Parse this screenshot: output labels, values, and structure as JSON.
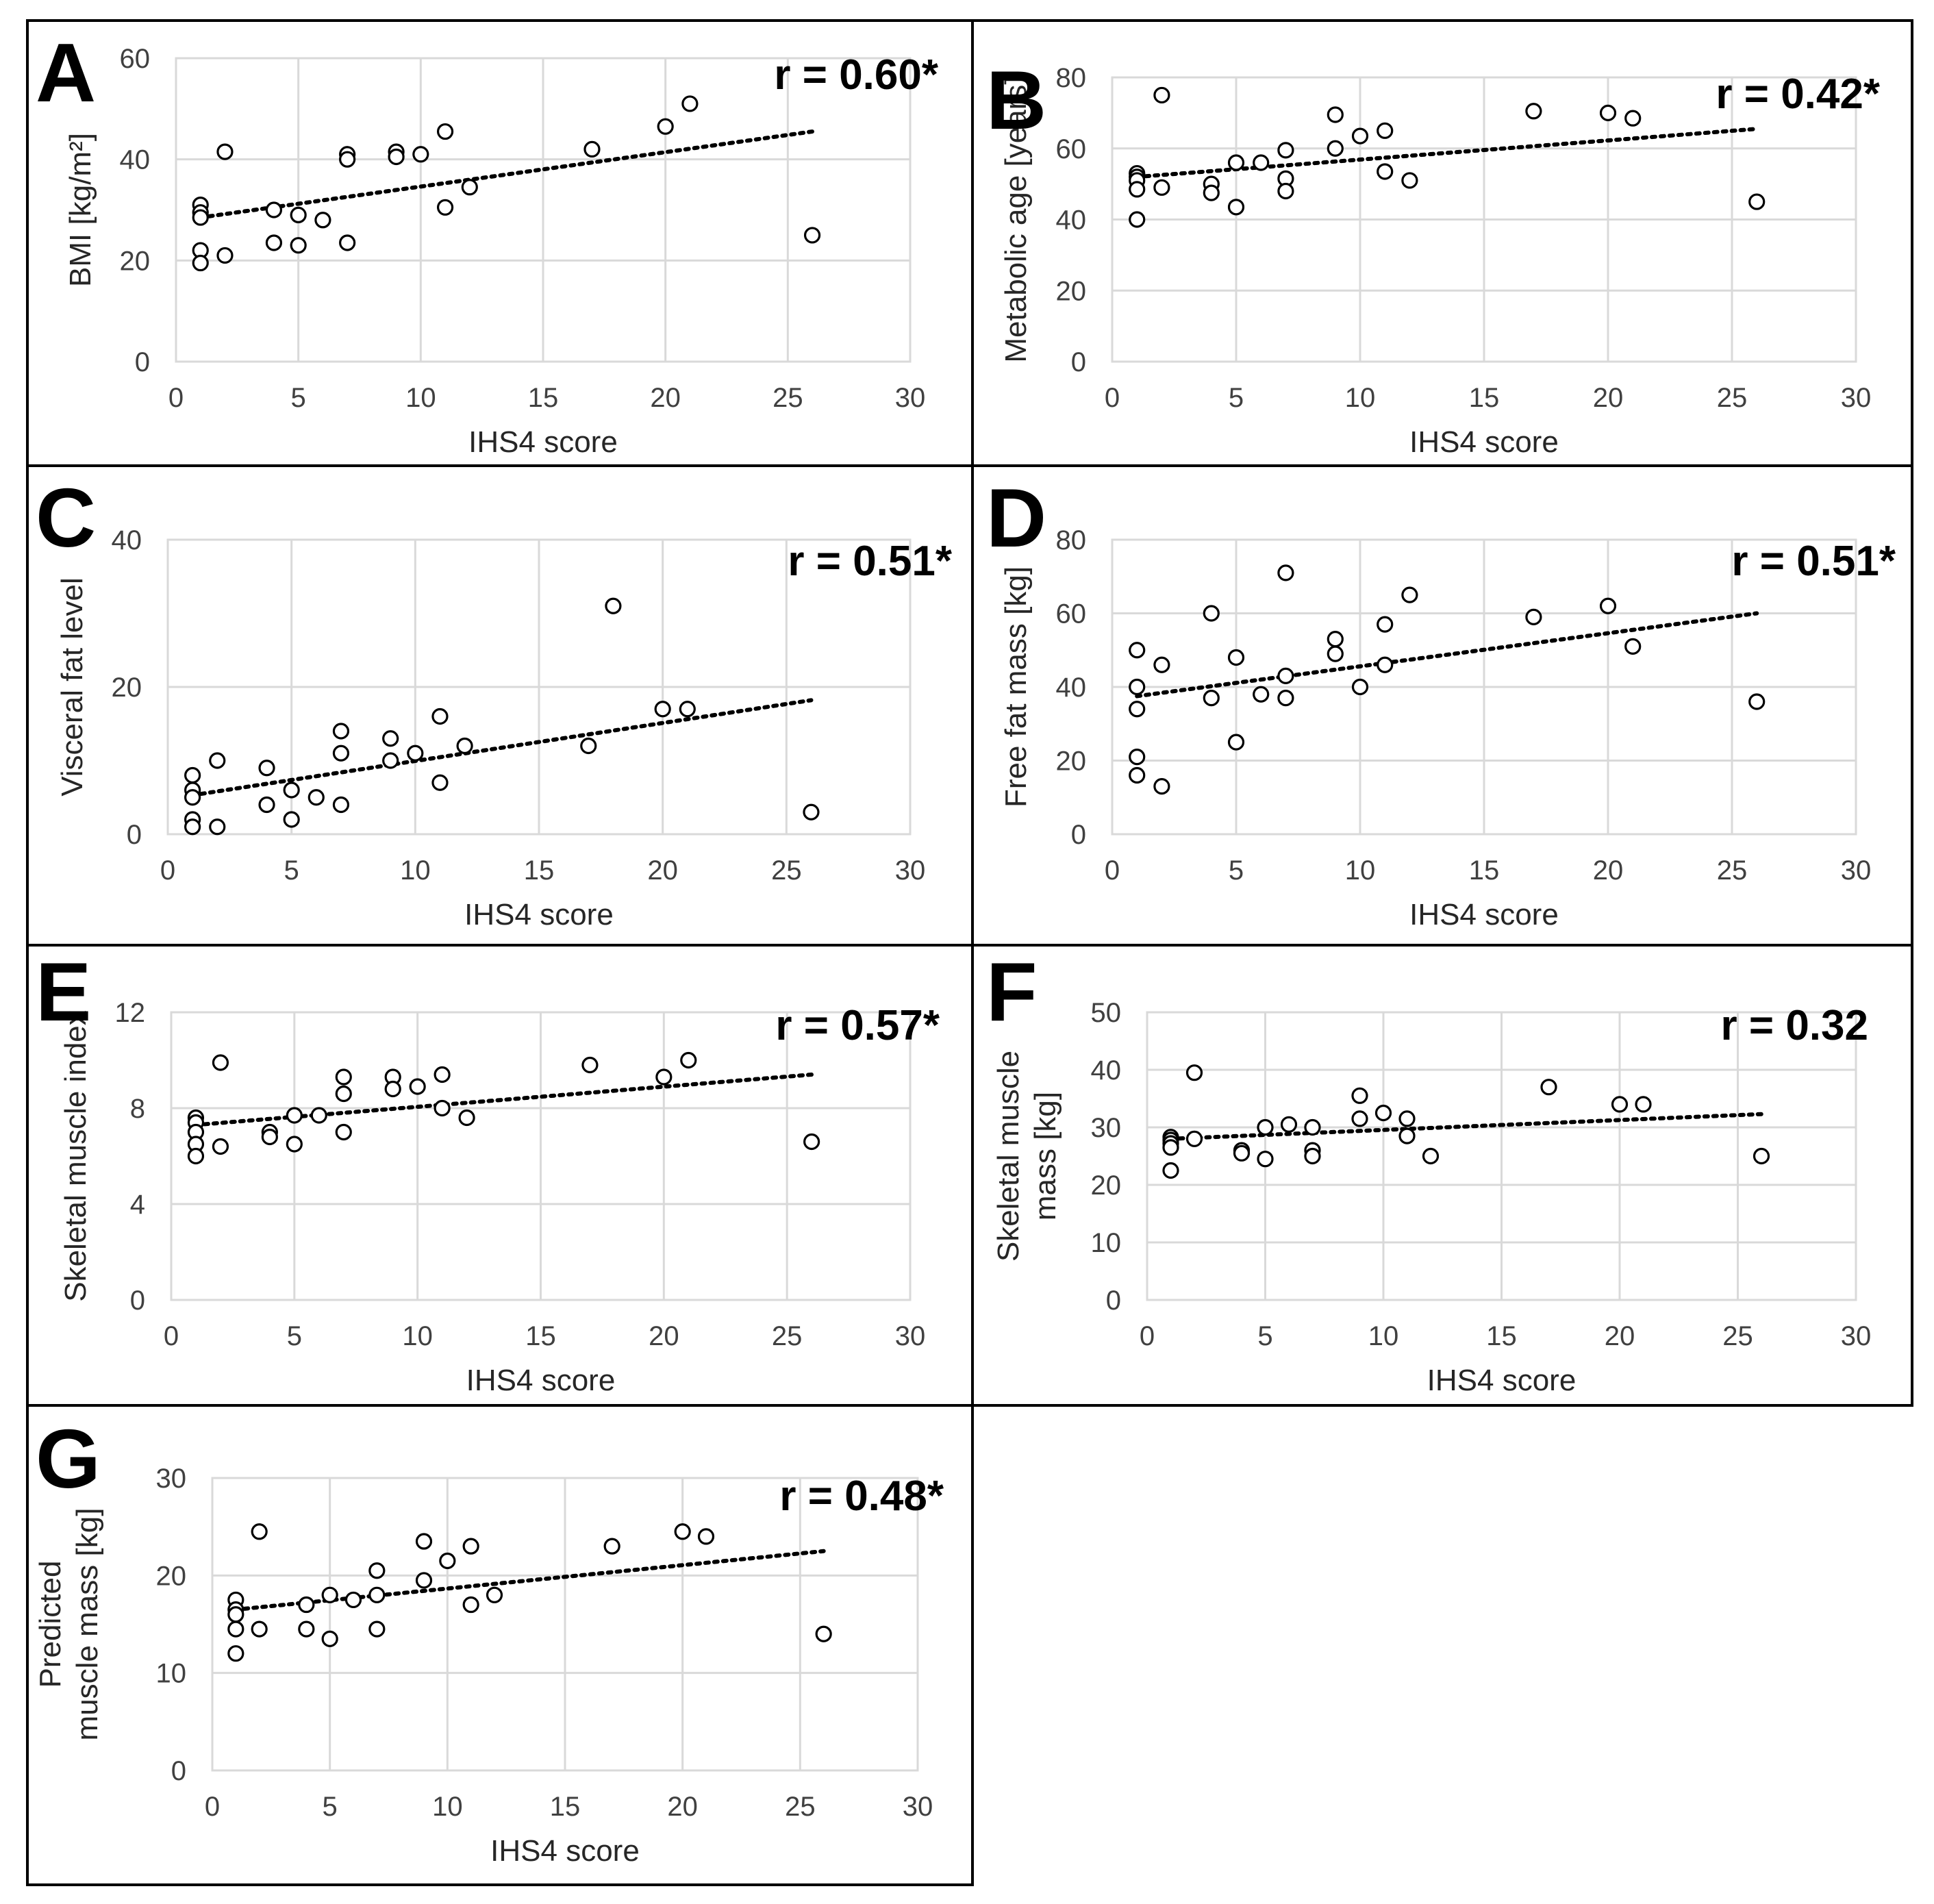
{
  "figure": {
    "panel_letters": [
      "A",
      "B",
      "C",
      "D",
      "E",
      "F",
      "G"
    ]
  },
  "chart_data": [
    {
      "id": "A",
      "type": "scatter",
      "panel_label": "A",
      "annotation": "r = 0.60*",
      "xlabel": "IHS4 score",
      "ylabel": "BMI [kg/m²]",
      "xlim": [
        0,
        30
      ],
      "ylim": [
        0,
        60
      ],
      "xticks": [
        "0",
        "5",
        "10",
        "15",
        "20",
        "25",
        "30"
      ],
      "yticks": [
        "0",
        "20",
        "40",
        "60"
      ],
      "points": [
        [
          1,
          31
        ],
        [
          1,
          29.5
        ],
        [
          1,
          28.5
        ],
        [
          1,
          22
        ],
        [
          1,
          19.5
        ],
        [
          2,
          41.5
        ],
        [
          2,
          21
        ],
        [
          4,
          30
        ],
        [
          4,
          23.5
        ],
        [
          5,
          29
        ],
        [
          5,
          23
        ],
        [
          6,
          28
        ],
        [
          7,
          41
        ],
        [
          7,
          40
        ],
        [
          7,
          23.5
        ],
        [
          9,
          41.5
        ],
        [
          9,
          40.5
        ],
        [
          10,
          41
        ],
        [
          11,
          45.5
        ],
        [
          11,
          30.5
        ],
        [
          12,
          34.5
        ],
        [
          17,
          42
        ],
        [
          20,
          46.5
        ],
        [
          21,
          51
        ],
        [
          26,
          25
        ]
      ],
      "trendline": {
        "x": [
          1,
          26
        ],
        "y": [
          28.5,
          45.5
        ]
      }
    },
    {
      "id": "B",
      "type": "scatter",
      "panel_label": "B",
      "annotation": "r = 0.42*",
      "xlabel": "IHS4 score",
      "ylabel": "Metabolic age [years]",
      "xlim": [
        0,
        30
      ],
      "ylim": [
        0,
        80
      ],
      "xticks": [
        "0",
        "5",
        "10",
        "15",
        "20",
        "25",
        "30"
      ],
      "yticks": [
        "0",
        "20",
        "40",
        "60",
        "80"
      ],
      "points": [
        [
          1,
          53
        ],
        [
          1,
          52
        ],
        [
          1,
          51
        ],
        [
          1,
          48.5
        ],
        [
          1,
          40
        ],
        [
          2,
          75
        ],
        [
          2,
          49
        ],
        [
          4,
          50
        ],
        [
          4,
          47.5
        ],
        [
          5,
          56
        ],
        [
          5,
          43.5
        ],
        [
          6,
          56
        ],
        [
          7,
          59.5
        ],
        [
          7,
          51.5
        ],
        [
          7,
          48
        ],
        [
          9,
          69.5
        ],
        [
          9,
          60
        ],
        [
          10,
          63.5
        ],
        [
          11,
          65
        ],
        [
          11,
          53.5
        ],
        [
          12,
          51
        ],
        [
          17,
          70.5
        ],
        [
          20,
          70
        ],
        [
          21,
          68.5
        ],
        [
          26,
          45
        ]
      ],
      "trendline": {
        "x": [
          1,
          26
        ],
        "y": [
          52,
          65.5
        ]
      }
    },
    {
      "id": "C",
      "type": "scatter",
      "panel_label": "C",
      "annotation": "r = 0.51*",
      "xlabel": "IHS4 score",
      "ylabel": "Visceral fat level",
      "xlim": [
        0,
        30
      ],
      "ylim": [
        0,
        40
      ],
      "xticks": [
        "0",
        "5",
        "10",
        "15",
        "20",
        "25",
        "30"
      ],
      "yticks": [
        "0",
        "20",
        "40"
      ],
      "points": [
        [
          1,
          8
        ],
        [
          1,
          6
        ],
        [
          1,
          5
        ],
        [
          1,
          2
        ],
        [
          1,
          1
        ],
        [
          2,
          10
        ],
        [
          2,
          1
        ],
        [
          4,
          9
        ],
        [
          4,
          4
        ],
        [
          5,
          6
        ],
        [
          5,
          2
        ],
        [
          6,
          5
        ],
        [
          7,
          14
        ],
        [
          7,
          11
        ],
        [
          7,
          4
        ],
        [
          9,
          13
        ],
        [
          9,
          10
        ],
        [
          10,
          11
        ],
        [
          11,
          16
        ],
        [
          11,
          7
        ],
        [
          12,
          12
        ],
        [
          17,
          12
        ],
        [
          18,
          31
        ],
        [
          20,
          17
        ],
        [
          21,
          17
        ],
        [
          26,
          3
        ]
      ],
      "trendline": {
        "x": [
          1,
          26
        ],
        "y": [
          5.3,
          18.2
        ]
      }
    },
    {
      "id": "D",
      "type": "scatter",
      "panel_label": "D",
      "annotation": "r = 0.51*",
      "xlabel": "IHS4 score",
      "ylabel": "Free fat mass [kg]",
      "xlim": [
        0,
        30
      ],
      "ylim": [
        0,
        80
      ],
      "xticks": [
        "0",
        "5",
        "10",
        "15",
        "20",
        "25",
        "30"
      ],
      "yticks": [
        "0",
        "20",
        "40",
        "60",
        "80"
      ],
      "points": [
        [
          1,
          50
        ],
        [
          1,
          40
        ],
        [
          1,
          34
        ],
        [
          1,
          21
        ],
        [
          1,
          16
        ],
        [
          2,
          46
        ],
        [
          2,
          13
        ],
        [
          4,
          60
        ],
        [
          4,
          37
        ],
        [
          5,
          48
        ],
        [
          5,
          25
        ],
        [
          6,
          38
        ],
        [
          7,
          71
        ],
        [
          7,
          43
        ],
        [
          7,
          37
        ],
        [
          9,
          53
        ],
        [
          9,
          49
        ],
        [
          10,
          40
        ],
        [
          11,
          57
        ],
        [
          11,
          46
        ],
        [
          12,
          65
        ],
        [
          17,
          59
        ],
        [
          20,
          62
        ],
        [
          21,
          51
        ],
        [
          26,
          36
        ]
      ],
      "trendline": {
        "x": [
          1,
          26
        ],
        "y": [
          37.5,
          60
        ]
      }
    },
    {
      "id": "E",
      "type": "scatter",
      "panel_label": "E",
      "annotation": "r = 0.57*",
      "xlabel": "IHS4 score",
      "ylabel": "Skeletal muscle index",
      "xlim": [
        0,
        30
      ],
      "ylim": [
        0,
        12
      ],
      "xticks": [
        "0",
        "5",
        "10",
        "15",
        "20",
        "25",
        "30"
      ],
      "yticks": [
        "0",
        "4",
        "8",
        "12"
      ],
      "points": [
        [
          1,
          7.6
        ],
        [
          1,
          7.4
        ],
        [
          1,
          7.0
        ],
        [
          1,
          6.5
        ],
        [
          1,
          6.0
        ],
        [
          2,
          9.9
        ],
        [
          2,
          6.4
        ],
        [
          4,
          7.0
        ],
        [
          4,
          6.8
        ],
        [
          5,
          7.7
        ],
        [
          5,
          6.5
        ],
        [
          6,
          7.7
        ],
        [
          7,
          9.3
        ],
        [
          7,
          8.6
        ],
        [
          7,
          7.0
        ],
        [
          9,
          9.3
        ],
        [
          9,
          8.8
        ],
        [
          10,
          8.9
        ],
        [
          11,
          9.4
        ],
        [
          11,
          8.0
        ],
        [
          12,
          7.6
        ],
        [
          17,
          9.8
        ],
        [
          20,
          9.3
        ],
        [
          21,
          10.0
        ],
        [
          26,
          6.6
        ]
      ],
      "trendline": {
        "x": [
          1,
          26
        ],
        "y": [
          7.3,
          9.4
        ]
      }
    },
    {
      "id": "F",
      "type": "scatter",
      "panel_label": "F",
      "annotation": "r = 0.32",
      "xlabel": "IHS4 score",
      "ylabel": "Skeletal muscle mass [kg]",
      "xlim": [
        0,
        30
      ],
      "ylim": [
        0,
        50
      ],
      "xticks": [
        "0",
        "5",
        "10",
        "15",
        "20",
        "25",
        "30"
      ],
      "yticks": [
        "0",
        "10",
        "20",
        "30",
        "40",
        "50"
      ],
      "points": [
        [
          1,
          28.3
        ],
        [
          1,
          27.8
        ],
        [
          1,
          27.2
        ],
        [
          1,
          26.5
        ],
        [
          1,
          22.5
        ],
        [
          2,
          39.5
        ],
        [
          2,
          28
        ],
        [
          4,
          26
        ],
        [
          4,
          25.5
        ],
        [
          5,
          30
        ],
        [
          5,
          24.5
        ],
        [
          6,
          30.5
        ],
        [
          7,
          30
        ],
        [
          7,
          26
        ],
        [
          7,
          25
        ],
        [
          9,
          35.5
        ],
        [
          9,
          31.5
        ],
        [
          10,
          32.5
        ],
        [
          11,
          31.5
        ],
        [
          11,
          28.5
        ],
        [
          12,
          25
        ],
        [
          17,
          37
        ],
        [
          20,
          34
        ],
        [
          21,
          34
        ],
        [
          26,
          25
        ]
      ],
      "trendline": {
        "x": [
          1,
          26
        ],
        "y": [
          28,
          32.3
        ]
      }
    },
    {
      "id": "G",
      "type": "scatter",
      "panel_label": "G",
      "annotation": "r = 0.48*",
      "xlabel": "IHS4 score",
      "ylabel": "Predicted muscle mass [kg]",
      "xlim": [
        0,
        30
      ],
      "ylim": [
        0,
        30
      ],
      "xticks": [
        "0",
        "5",
        "10",
        "15",
        "20",
        "25",
        "30"
      ],
      "yticks": [
        "0",
        "10",
        "20",
        "30"
      ],
      "points": [
        [
          1,
          17.5
        ],
        [
          1,
          16.5
        ],
        [
          1,
          16
        ],
        [
          1,
          14.5
        ],
        [
          1,
          12
        ],
        [
          2,
          24.5
        ],
        [
          2,
          14.5
        ],
        [
          4,
          17
        ],
        [
          4,
          14.5
        ],
        [
          5,
          18
        ],
        [
          5,
          13.5
        ],
        [
          6,
          17.5
        ],
        [
          7,
          20.5
        ],
        [
          7,
          18
        ],
        [
          7,
          14.5
        ],
        [
          9,
          23.5
        ],
        [
          9,
          19.5
        ],
        [
          10,
          21.5
        ],
        [
          11,
          23
        ],
        [
          11,
          17
        ],
        [
          12,
          18
        ],
        [
          17,
          23
        ],
        [
          20,
          24.5
        ],
        [
          21,
          24
        ],
        [
          26,
          14
        ]
      ],
      "trendline": {
        "x": [
          1,
          26
        ],
        "y": [
          16.5,
          22.5
        ]
      }
    }
  ]
}
